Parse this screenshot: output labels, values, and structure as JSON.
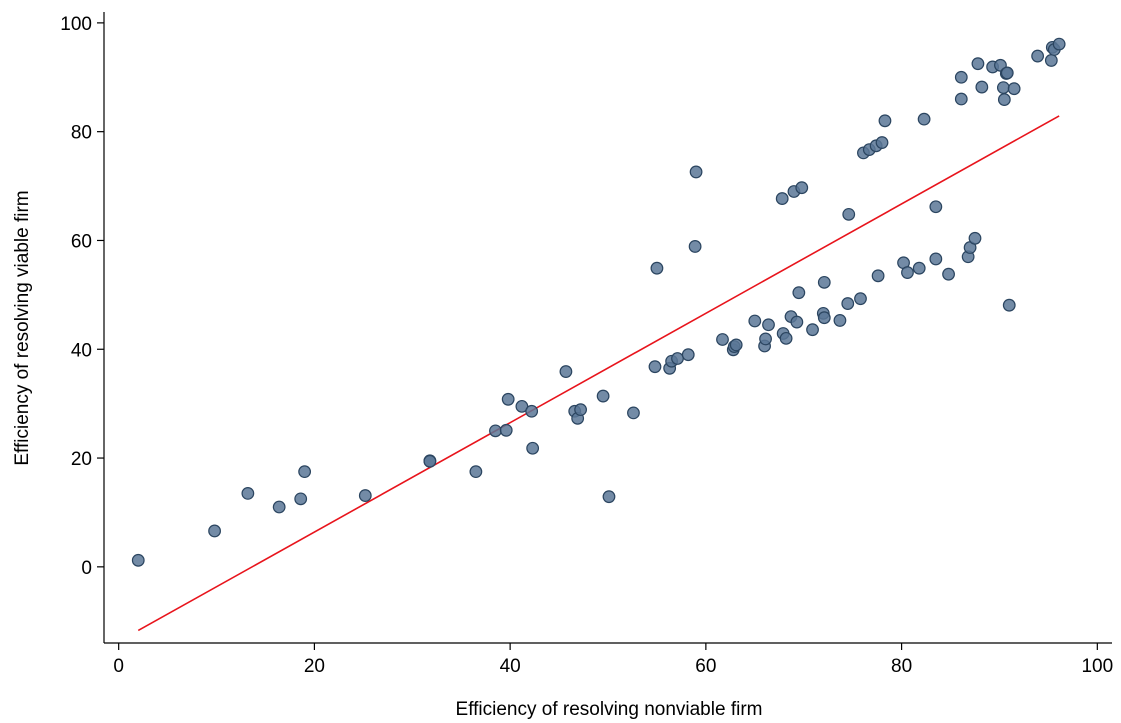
{
  "chart_data": {
    "type": "scatter",
    "xlabel": "Efficiency of resolving nonviable firm",
    "ylabel": "Efficiency of resolving viable firm",
    "xlim": [
      -1.5,
      101.5
    ],
    "ylim": [
      -14,
      102
    ],
    "xticks": [
      0,
      20,
      40,
      60,
      80,
      100
    ],
    "yticks": [
      0,
      20,
      40,
      60,
      80,
      100
    ],
    "grid": false,
    "legend": "none",
    "colors": {
      "marker_fill": "#5a7796",
      "marker_edge": "#2b4560",
      "fit_line": "#e8141c",
      "axis": "#000000"
    },
    "series": [
      {
        "kind": "points",
        "points": [
          [
            2,
            1.2
          ],
          [
            9.8,
            6.6
          ],
          [
            13.2,
            13.5
          ],
          [
            16.4,
            11
          ],
          [
            18.6,
            12.5
          ],
          [
            19,
            17.5
          ],
          [
            25.2,
            13.1
          ],
          [
            31.8,
            19.5
          ],
          [
            31.8,
            19.4
          ],
          [
            36.5,
            17.5
          ],
          [
            38.5,
            25
          ],
          [
            39.6,
            25.1
          ],
          [
            39.8,
            30.8
          ],
          [
            41.2,
            29.5
          ],
          [
            42.2,
            28.6
          ],
          [
            42.3,
            21.8
          ],
          [
            45.7,
            35.9
          ],
          [
            46.6,
            28.6
          ],
          [
            46.9,
            27.3
          ],
          [
            47.2,
            28.9
          ],
          [
            49.5,
            31.4
          ],
          [
            50.1,
            12.9
          ],
          [
            52.6,
            28.3
          ],
          [
            54.8,
            36.8
          ],
          [
            55,
            54.9
          ],
          [
            56.3,
            36.5
          ],
          [
            56.5,
            37.8
          ],
          [
            57.1,
            38.3
          ],
          [
            58.2,
            39
          ],
          [
            58.9,
            58.9
          ],
          [
            59,
            72.6
          ],
          [
            61.7,
            41.8
          ],
          [
            62.8,
            39.9
          ],
          [
            62.9,
            40.5
          ],
          [
            63.1,
            40.8
          ],
          [
            65,
            45.2
          ],
          [
            66,
            40.6
          ],
          [
            66.1,
            41.9
          ],
          [
            66.4,
            44.5
          ],
          [
            67.8,
            67.7
          ],
          [
            67.9,
            42.9
          ],
          [
            68.2,
            42
          ],
          [
            68.7,
            46
          ],
          [
            69,
            69
          ],
          [
            69.3,
            45
          ],
          [
            69.5,
            50.4
          ],
          [
            69.8,
            69.7
          ],
          [
            70.9,
            43.6
          ],
          [
            72,
            46.6
          ],
          [
            72.1,
            45.8
          ],
          [
            72.1,
            52.3
          ],
          [
            73.7,
            45.3
          ],
          [
            74.5,
            48.4
          ],
          [
            74.6,
            64.8
          ],
          [
            75.8,
            49.3
          ],
          [
            76.1,
            76.1
          ],
          [
            76.7,
            76.7
          ],
          [
            77.4,
            77.4
          ],
          [
            77.6,
            53.5
          ],
          [
            78,
            78
          ],
          [
            78.3,
            82
          ],
          [
            80.2,
            55.9
          ],
          [
            80.6,
            54.1
          ],
          [
            81.8,
            54.9
          ],
          [
            82.3,
            82.3
          ],
          [
            83.5,
            66.2
          ],
          [
            83.5,
            56.6
          ],
          [
            84.8,
            53.8
          ],
          [
            86.1,
            90
          ],
          [
            86.1,
            86
          ],
          [
            86.8,
            57
          ],
          [
            87,
            58.7
          ],
          [
            87.5,
            60.4
          ],
          [
            87.8,
            92.5
          ],
          [
            88.2,
            88.2
          ],
          [
            89.3,
            91.9
          ],
          [
            90.1,
            92.2
          ],
          [
            90.4,
            88.1
          ],
          [
            90.5,
            85.9
          ],
          [
            90.7,
            90.7
          ],
          [
            90.8,
            90.8
          ],
          [
            91,
            48.1
          ],
          [
            91.5,
            87.9
          ],
          [
            93.9,
            93.9
          ],
          [
            95.3,
            93.1
          ],
          [
            95.4,
            95.5
          ],
          [
            95.6,
            95.1
          ],
          [
            96.1,
            96.1
          ]
        ]
      },
      {
        "kind": "fit-line",
        "points": [
          [
            2,
            -11.7
          ],
          [
            96.1,
            82.9
          ]
        ]
      }
    ]
  }
}
